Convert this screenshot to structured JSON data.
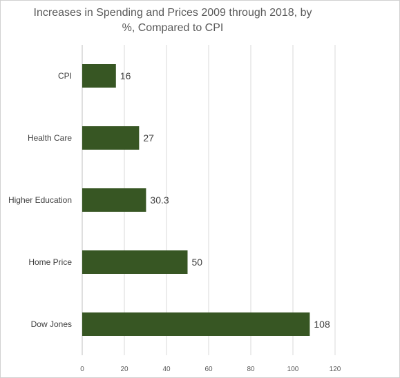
{
  "chart_data": {
    "type": "bar",
    "orientation": "horizontal",
    "title_lines": [
      "Increases in Spending and Prices 2009 through 2018, by",
      "%, Compared to CPI"
    ],
    "categories": [
      "CPI",
      "Health Care",
      "Higher Education",
      "Home Price",
      "Dow Jones"
    ],
    "values": [
      16,
      27,
      30.3,
      50,
      108
    ],
    "data_labels": [
      "16",
      "27",
      "30.3",
      "50",
      "108"
    ],
    "xlim": [
      0,
      120
    ],
    "x_ticks": [
      "0",
      "20",
      "40",
      "60",
      "80",
      "100",
      "120"
    ],
    "grid": "vertical",
    "bar_color": "#375623",
    "xlabel": "",
    "ylabel": ""
  }
}
